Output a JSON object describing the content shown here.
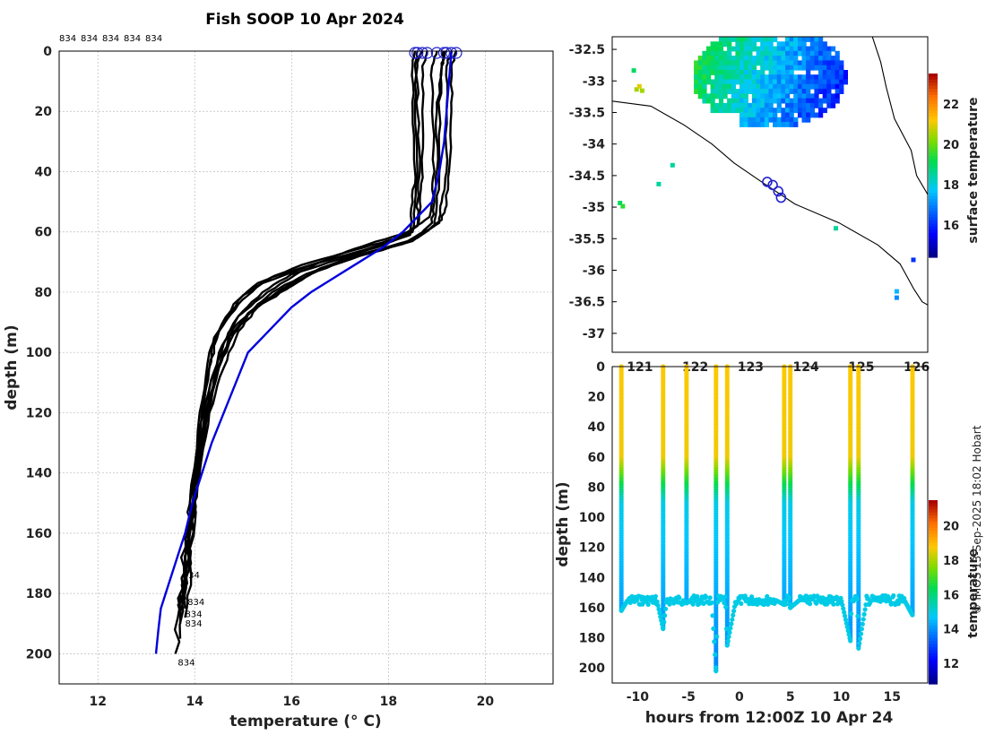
{
  "figure": {
    "title": "Fish SOOP 10 Apr 2024",
    "credit": "© IMOS 13-Sep-2025 18:02 Hobart",
    "top_labels": [
      "834",
      "834",
      "834",
      "834",
      "834"
    ]
  },
  "chart_data": [
    {
      "id": "profile",
      "type": "line",
      "title": "Fish SOOP 10 Apr 2024",
      "xlabel": "temperature (° C)",
      "ylabel": "depth (m)",
      "xlim": [
        11.2,
        21.4
      ],
      "ylim": [
        210,
        0
      ],
      "xticks": [
        12,
        14,
        16,
        18,
        20
      ],
      "yticks": [
        0,
        20,
        40,
        60,
        80,
        100,
        120,
        140,
        160,
        180,
        200
      ],
      "grid": true,
      "station_label": "834",
      "station_labels": [
        {
          "text": "834",
          "t": 13.75,
          "d": 174
        },
        {
          "text": "834",
          "t": 13.85,
          "d": 183
        },
        {
          "text": "834",
          "t": 13.8,
          "d": 187
        },
        {
          "text": "834",
          "t": 13.8,
          "d": 190
        },
        {
          "text": "834",
          "t": 13.65,
          "d": 203
        }
      ],
      "mean_profile": {
        "name": "mean",
        "color": "#0000dd",
        "t": [
          19.3,
          19.25,
          19.2,
          19.15,
          19.05,
          18.9,
          18.6,
          18.3,
          17.9,
          17.4,
          16.9,
          16.4,
          16.0,
          15.7,
          15.4,
          15.1,
          14.85,
          14.6,
          14.35,
          14.15,
          13.95,
          13.8,
          13.7,
          13.6,
          13.5,
          13.4,
          13.3,
          13.25,
          13.2
        ],
        "d": [
          0,
          10,
          20,
          30,
          40,
          50,
          55,
          60,
          65,
          70,
          75,
          80,
          85,
          90,
          95,
          100,
          110,
          120,
          130,
          140,
          150,
          160,
          165,
          170,
          175,
          180,
          185,
          192,
          200
        ]
      },
      "series": [
        {
          "name": "p1",
          "t": [
            19.4,
            19.3,
            19.3,
            19.25,
            19.2,
            19.1,
            18.6,
            17.6,
            16.6,
            16.0,
            15.3,
            14.8,
            14.5,
            14.2,
            14.0,
            13.9,
            13.8,
            13.7
          ],
          "d": [
            0,
            5,
            20,
            40,
            50,
            56,
            62,
            67,
            72,
            78,
            84,
            92,
            105,
            125,
            145,
            160,
            175,
            186
          ]
        },
        {
          "name": "p2",
          "t": [
            19.2,
            19.1,
            19.0,
            19.0,
            18.95,
            18.9,
            18.5,
            17.3,
            16.3,
            15.6,
            15.1,
            14.7,
            14.4,
            14.1,
            13.9,
            13.8,
            13.7,
            13.6
          ],
          "d": [
            0,
            5,
            20,
            40,
            50,
            57,
            63,
            68,
            74,
            80,
            87,
            95,
            110,
            130,
            150,
            165,
            180,
            200
          ]
        },
        {
          "name": "p3",
          "t": [
            18.8,
            18.7,
            18.7,
            18.7,
            18.65,
            18.6,
            18.1,
            17.0,
            16.0,
            15.4,
            14.9,
            14.6,
            14.3,
            14.1,
            13.9,
            13.8,
            13.7
          ],
          "d": [
            0,
            5,
            20,
            40,
            50,
            58,
            63,
            69,
            74,
            80,
            88,
            97,
            112,
            135,
            150,
            168,
            185
          ]
        },
        {
          "name": "p4",
          "t": [
            18.6,
            18.55,
            18.55,
            18.6,
            18.55,
            18.5,
            17.8,
            16.6,
            15.6,
            15.0,
            14.6,
            14.3,
            14.1,
            13.9,
            13.8,
            13.7
          ],
          "d": [
            0,
            5,
            20,
            40,
            50,
            60,
            65,
            70,
            75,
            81,
            90,
            100,
            120,
            150,
            170,
            190
          ]
        },
        {
          "name": "p5",
          "t": [
            18.7,
            18.6,
            18.6,
            18.65,
            18.6,
            18.6,
            18.2,
            17.3,
            16.2,
            15.3,
            14.8,
            14.4,
            14.2,
            14.0,
            13.9,
            13.8
          ],
          "d": [
            0,
            5,
            20,
            40,
            50,
            58,
            62,
            66,
            71,
            77,
            84,
            95,
            115,
            140,
            160,
            185
          ]
        },
        {
          "name": "p6",
          "t": [
            19.0,
            18.9,
            18.9,
            18.95,
            18.9,
            18.85,
            18.4,
            17.6,
            16.9,
            16.2,
            15.5,
            14.9,
            14.5,
            14.2,
            14.0,
            13.9,
            13.8
          ],
          "d": [
            0,
            5,
            20,
            40,
            50,
            55,
            60,
            64,
            68,
            73,
            80,
            88,
            100,
            120,
            145,
            165,
            182
          ]
        },
        {
          "name": "p7",
          "t": [
            18.55,
            18.5,
            18.5,
            18.55,
            18.5,
            18.45,
            17.5,
            16.4,
            15.4,
            14.9,
            14.5,
            14.3,
            14.1,
            14.0,
            13.9,
            13.8
          ],
          "d": [
            0,
            5,
            20,
            40,
            50,
            61,
            66,
            71,
            77,
            84,
            93,
            105,
            125,
            145,
            170,
            188
          ]
        },
        {
          "name": "p8",
          "t": [
            19.15,
            19.1,
            19.05,
            19.05,
            19.0,
            18.95,
            18.3,
            17.2,
            16.4,
            15.9,
            15.3,
            14.9,
            14.6,
            14.3,
            14.1,
            13.9,
            13.8
          ],
          "d": [
            0,
            5,
            20,
            40,
            50,
            58,
            64,
            69,
            74,
            79,
            85,
            93,
            105,
            120,
            140,
            160,
            180
          ]
        },
        {
          "name": "p9",
          "t": [
            19.3,
            19.2,
            19.2,
            19.2,
            19.1,
            19.05,
            18.5,
            17.4,
            16.5,
            15.8,
            15.2,
            14.8,
            14.4,
            14.2,
            14.0,
            13.8,
            13.7
          ],
          "d": [
            0,
            5,
            20,
            40,
            50,
            57,
            63,
            68,
            73,
            79,
            86,
            94,
            108,
            128,
            150,
            172,
            195
          ]
        }
      ]
    },
    {
      "id": "map",
      "type": "heatmap",
      "xlim": [
        120.5,
        126.2
      ],
      "ylim": [
        -37.3,
        -32.3
      ],
      "xticks": [
        121,
        122,
        123,
        124,
        125,
        126
      ],
      "yticks": [
        -32.5,
        -33,
        -33.5,
        -34,
        -34.5,
        -35,
        -35.5,
        -36,
        -36.5,
        -37
      ],
      "colorbar": {
        "label": "surface temperature",
        "min": 14.4,
        "max": 23.5,
        "ticks": [
          16,
          18,
          20,
          22
        ]
      },
      "track": [
        {
          "lon": 123.3,
          "lat": -34.6
        },
        {
          "lon": 123.4,
          "lat": -34.65
        },
        {
          "lon": 123.5,
          "lat": -34.75
        },
        {
          "lon": 123.55,
          "lat": -34.85
        }
      ],
      "coast": [
        [
          120.5,
          -33.32
        ],
        [
          121.2,
          -33.4
        ],
        [
          121.8,
          -33.7
        ],
        [
          122.3,
          -34.0
        ],
        [
          122.7,
          -34.3
        ],
        [
          123.2,
          -34.6
        ],
        [
          123.8,
          -34.95
        ],
        [
          124.6,
          -35.25
        ],
        [
          125.3,
          -35.6
        ],
        [
          125.7,
          -35.9
        ],
        [
          125.95,
          -36.3
        ],
        [
          126.1,
          -36.5
        ],
        [
          126.2,
          -36.55
        ]
      ]
    },
    {
      "id": "section",
      "type": "scatter",
      "xlabel": "hours from 12:00Z 10 Apr 24",
      "ylabel": "depth (m)",
      "xlim": [
        -12.5,
        18.5
      ],
      "ylim": [
        210,
        0
      ],
      "xticks": [
        -10,
        -5,
        0,
        5,
        10,
        15
      ],
      "yticks": [
        0,
        20,
        40,
        60,
        80,
        100,
        120,
        140,
        160,
        180,
        200
      ],
      "colorbar": {
        "label": "temperature",
        "min": 10.8,
        "max": 21.5,
        "ticks": [
          12,
          14,
          16,
          18,
          20
        ]
      },
      "casts": [
        -11.6,
        -7.5,
        -5.2,
        -2.3,
        -1.2,
        4.4,
        5.0,
        10.9,
        11.7,
        17.0
      ],
      "max_depth": [
        162,
        174,
        157,
        202,
        185,
        158,
        160,
        182,
        187,
        165
      ]
    }
  ]
}
